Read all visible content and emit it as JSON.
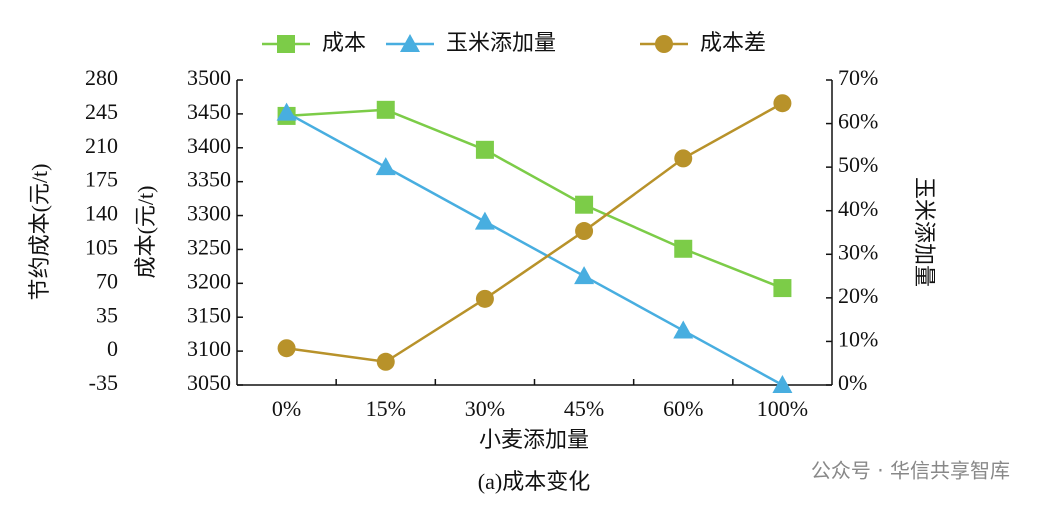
{
  "chart_data": {
    "type": "line",
    "categories": [
      "0%",
      "15%",
      "30%",
      "45%",
      "60%",
      "100%"
    ],
    "x_label": "小麦添加量",
    "caption": "(a)成本变化",
    "watermark": "公众号 · 华信共享智库",
    "y_label": "成本(元/t)",
    "ylim": [
      3050,
      3500
    ],
    "yticks": [
      3050,
      3100,
      3150,
      3200,
      3250,
      3300,
      3350,
      3400,
      3450,
      3500
    ],
    "y2_label": "玉米添加量",
    "y2lim": [
      0,
      70
    ],
    "y2ticks": [
      {
        "value": 0,
        "label": "0%"
      },
      {
        "value": 10,
        "label": "10%"
      },
      {
        "value": 20,
        "label": "20%"
      },
      {
        "value": 30,
        "label": "30%"
      },
      {
        "value": 40,
        "label": "40%"
      },
      {
        "value": 50,
        "label": "50%"
      },
      {
        "value": 60,
        "label": "60%"
      },
      {
        "value": 70,
        "label": "70%"
      }
    ],
    "y3_label": "节约成本(元/t)",
    "y3lim": [
      -35,
      280
    ],
    "y3ticks": [
      -35,
      0,
      35,
      70,
      105,
      140,
      175,
      210,
      245,
      280
    ],
    "series": [
      {
        "name": "成本",
        "color": "#7ccc48",
        "marker": "square",
        "axis": "y",
        "values": [
          3447,
          3456,
          3397,
          3316,
          3251,
          3193
        ]
      },
      {
        "name": "玉米添加量",
        "color": "#48aee0",
        "marker": "triangle",
        "axis": "y2",
        "values": [
          62.5,
          50,
          37.5,
          25,
          12.5,
          0
        ]
      },
      {
        "name": "成本差",
        "color": "#b8922a",
        "marker": "circle",
        "axis": "y3",
        "values": [
          3,
          -11,
          54,
          124,
          199,
          256
        ]
      }
    ]
  }
}
